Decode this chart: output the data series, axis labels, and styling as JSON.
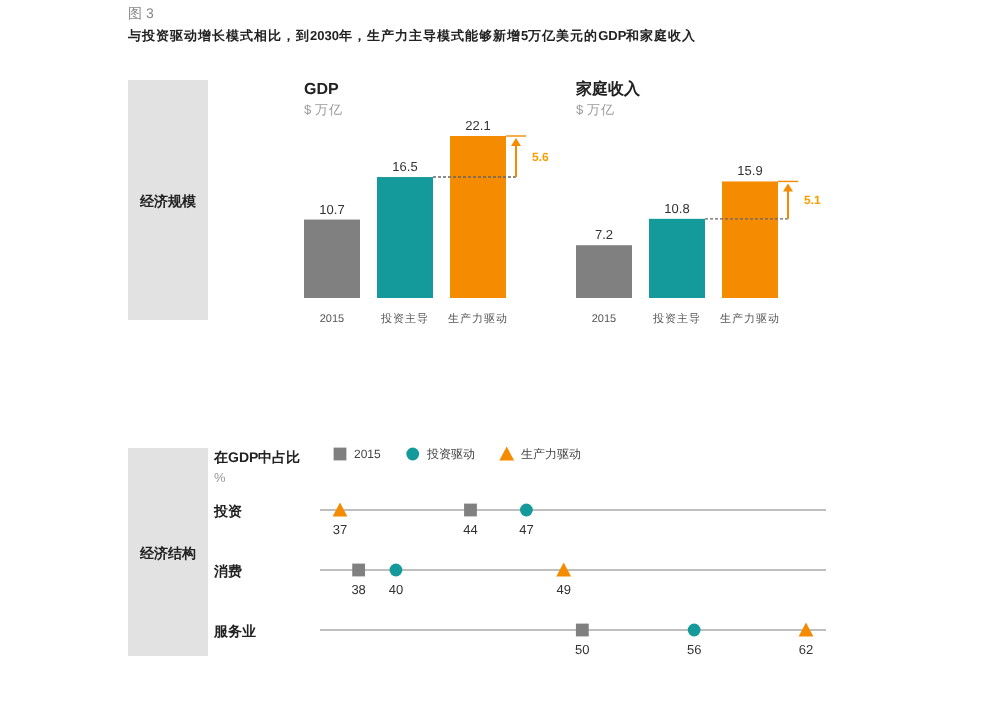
{
  "chart_data": [
    {
      "type": "bar",
      "title": "GDP",
      "subtitle": "$ 万亿",
      "ylabel": "经济规模",
      "categories": [
        "2015",
        "投资主导",
        "生产力驱动"
      ],
      "values": [
        10.7,
        16.5,
        22.1
      ],
      "colors": [
        "#808080",
        "#149a9b",
        "#f58b00"
      ],
      "data_labels": true,
      "annotations": [
        "图 3",
        "与投资驱动增长模式相比，到2030年，生产力主导模式能够新增5万亿美元的GDP和家庭收入",
        "5.6"
      ]
    },
    {
      "type": "bar",
      "title": "家庭收入",
      "subtitle": "$ 万亿",
      "categories": [
        "2015",
        "投资主导",
        "生产力驱动"
      ],
      "values": [
        7.2,
        10.8,
        15.9
      ],
      "colors": [
        "#808080",
        "#149a9b",
        "#f58b00"
      ],
      "data_labels": true,
      "annotations": [
        "5.1"
      ]
    },
    {
      "type": "scatter",
      "orientation": "horizontal",
      "title": "在GDP中占比",
      "subtitle": "%",
      "ylabel": "经济结构",
      "categories": [
        "投资",
        "消费",
        "服务业"
      ],
      "data_labels": true,
      "grid": "y",
      "legend": "top",
      "series": [
        {
          "name": "2015",
          "color": "#808080",
          "marker": "square",
          "values": [
            44,
            38,
            50
          ]
        },
        {
          "name": "投资驱动",
          "color": "#149a9b",
          "marker": "circle",
          "values": [
            47,
            40,
            56
          ]
        },
        {
          "name": "生产力驱动",
          "color": "#f58b00",
          "marker": "triangle",
          "values": [
            37,
            49,
            62
          ]
        }
      ]
    }
  ]
}
